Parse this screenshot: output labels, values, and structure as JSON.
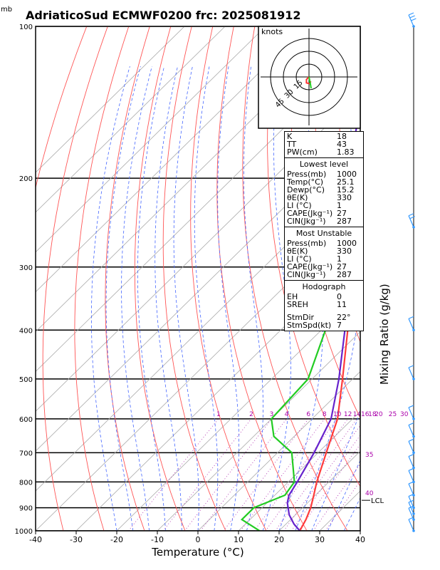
{
  "title": "AdriaticoSud ECMWF0200 frc: 2025081912",
  "units_label": "mb",
  "xlabel": "Temperature (°C)",
  "right_label": "Mixing Ratio (g/kg)",
  "hodograph": {
    "units": "knots",
    "ring_labels": [
      "15",
      "30",
      "45"
    ]
  },
  "lcl_label": "LCL",
  "indices": {
    "top": [
      {
        "label": "K",
        "value": "18"
      },
      {
        "label": "TT",
        "value": "43"
      },
      {
        "label": "PW(cm)",
        "value": "1.83"
      }
    ],
    "lowest": {
      "header": "Lowest level",
      "rows": [
        {
          "label": "Press(mb)",
          "value": "1000"
        },
        {
          "label": "Temp(°C)",
          "value": "25.1"
        },
        {
          "label": "Dewp(°C)",
          "value": "15.2"
        },
        {
          "label": "θE(K)",
          "value": "330"
        },
        {
          "label": "LI (°C)",
          "value": "1"
        },
        {
          "label": "CAPE(Jkg⁻¹)",
          "value": "27"
        },
        {
          "label": "CIN(Jkg⁻¹)",
          "value": "287"
        }
      ]
    },
    "unstable": {
      "header": "Most Unstable",
      "rows": [
        {
          "label": "Press(mb)",
          "value": "1000"
        },
        {
          "label": "θE(K)",
          "value": "330"
        },
        {
          "label": "LI (°C)",
          "value": "1"
        },
        {
          "label": "CAPE(Jkg⁻¹)",
          "value": "27"
        },
        {
          "label": "CIN(Jkg⁻¹)",
          "value": "287"
        }
      ]
    },
    "hodo": {
      "header": "Hodograph",
      "rows": [
        {
          "label": "EH",
          "value": "0"
        },
        {
          "label": "SREH",
          "value": "11"
        },
        {
          "label": "StmDir",
          "value": "22°"
        },
        {
          "label": "StmSpd(kt)",
          "value": "7"
        }
      ]
    }
  },
  "chart_data": {
    "type": "line",
    "title": "AdriaticoSud ECMWF0200 frc: 2025081912",
    "xlabel": "Temperature (°C)",
    "ylabel": "mb",
    "xlim": [
      -40,
      40
    ],
    "ylim": [
      1000,
      100
    ],
    "y_scale": "log",
    "x_ticks": [
      -40,
      -30,
      -20,
      -10,
      0,
      10,
      20,
      30,
      40
    ],
    "pressure_ticks": [
      100,
      200,
      300,
      400,
      500,
      600,
      700,
      800,
      900,
      1000
    ],
    "mixing_ratio_labels": [
      "1",
      "2",
      "3",
      "4",
      "6",
      "8",
      "10",
      "12",
      "14",
      "16",
      "18",
      "20",
      "25",
      "30"
    ],
    "isotherm_labels": [
      "35",
      "40"
    ],
    "series": [
      {
        "name": "Temperature",
        "color": "#ff3b3b",
        "points": [
          [
            1000,
            25.1
          ],
          [
            950,
            23.8
          ],
          [
            900,
            22.0
          ],
          [
            850,
            19.6
          ],
          [
            800,
            17.0
          ],
          [
            700,
            12.0
          ],
          [
            600,
            6.3
          ],
          [
            500,
            -2.5
          ],
          [
            400,
            -13.5
          ],
          [
            300,
            -27.5
          ],
          [
            250,
            -38.5
          ],
          [
            200,
            -40.5
          ],
          [
            150,
            -45.0
          ],
          [
            100,
            -50.0
          ]
        ]
      },
      {
        "name": "Dewpoint",
        "color": "#22cc22",
        "points": [
          [
            1000,
            15.2
          ],
          [
            950,
            8.0
          ],
          [
            900,
            8.0
          ],
          [
            850,
            12.5
          ],
          [
            800,
            11.5
          ],
          [
            700,
            3.5
          ],
          [
            650,
            -5.0
          ],
          [
            600,
            -10.0
          ],
          [
            500,
            -11.0
          ],
          [
            400,
            -19.0
          ],
          [
            300,
            -30.0
          ],
          [
            200,
            -50.0
          ],
          [
            100,
            -69.0
          ]
        ]
      },
      {
        "name": "Parcel",
        "color": "#6622cc",
        "points": [
          [
            1000,
            25.1
          ],
          [
            970,
            22.0
          ],
          [
            930,
            18.5
          ],
          [
            880,
            15.0
          ],
          [
            850,
            13.5
          ],
          [
            800,
            12.2
          ],
          [
            700,
            9.0
          ],
          [
            600,
            4.7
          ],
          [
            500,
            -3.4
          ],
          [
            400,
            -14.2
          ],
          [
            300,
            -30.0
          ],
          [
            200,
            -52.0
          ],
          [
            130,
            -71.0
          ]
        ]
      }
    ],
    "hodograph_points": [
      [
        0.0,
        0.0
      ],
      [
        -3.0,
        -3.0
      ],
      [
        -3.0,
        -7.0
      ],
      [
        1.0,
        -8.0
      ],
      [
        2.0,
        -5.0
      ]
    ],
    "wind_barbs": [
      {
        "p": 1000,
        "speed_kt": 5
      },
      {
        "p": 950,
        "speed_kt": 5
      },
      {
        "p": 925,
        "speed_kt": 10
      },
      {
        "p": 900,
        "speed_kt": 10
      },
      {
        "p": 850,
        "speed_kt": 10
      },
      {
        "p": 800,
        "speed_kt": 5
      },
      {
        "p": 750,
        "speed_kt": 10
      },
      {
        "p": 700,
        "speed_kt": 10
      },
      {
        "p": 650,
        "speed_kt": 10
      },
      {
        "p": 600,
        "speed_kt": 10
      },
      {
        "p": 500,
        "speed_kt": 10
      },
      {
        "p": 400,
        "speed_kt": 10
      },
      {
        "p": 250,
        "speed_kt": 15
      },
      {
        "p": 100,
        "speed_kt": 25
      }
    ]
  }
}
